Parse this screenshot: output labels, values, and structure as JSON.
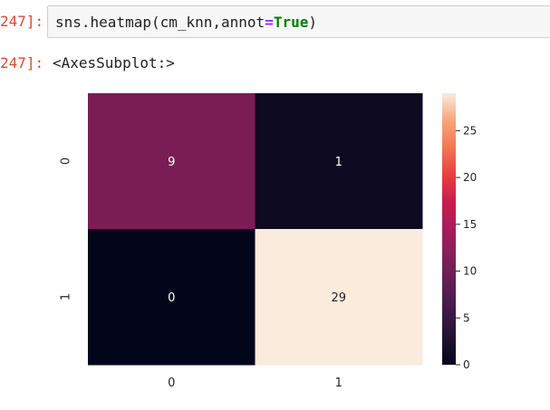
{
  "cell": {
    "input_prompt": "247]:",
    "code_prefix": "sns.heatmap(cm_knn,annot",
    "code_eq": "=",
    "code_true": "True",
    "code_suffix": ")",
    "output_prompt": "247]:",
    "output_text": "<AxesSubplot:>"
  },
  "chart_data": {
    "type": "heatmap",
    "title": "",
    "xlabel": "",
    "ylabel": "",
    "x_tick_labels": [
      "0",
      "1"
    ],
    "y_tick_labels": [
      "0",
      "1"
    ],
    "values": [
      [
        9,
        1
      ],
      [
        0,
        29
      ]
    ],
    "annotations": true,
    "colormap": "rocket",
    "colorbar": {
      "range": [
        0,
        29
      ],
      "ticks": [
        0,
        5,
        10,
        15,
        20,
        25
      ]
    },
    "colors": {
      "value_0": "#03051a",
      "value_1": "#0e0a22",
      "value_9": "#7a1d55",
      "value_29": "#faebdd"
    }
  }
}
